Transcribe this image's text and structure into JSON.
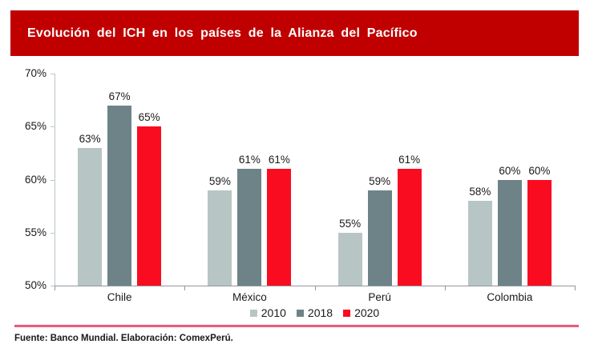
{
  "header": {
    "title": "Evolución del ICH en los países de la Alianza del Pacífico"
  },
  "chart_data": {
    "type": "bar",
    "title": "Evolución del ICH en los países de la Alianza del Pacífico",
    "categories": [
      "Chile",
      "México",
      "Perú",
      "Colombia"
    ],
    "series": [
      {
        "name": "2010",
        "color": "#B7C6C4",
        "values": [
          63,
          59,
          55,
          58
        ]
      },
      {
        "name": "2018",
        "color": "#6E8387",
        "values": [
          67,
          61,
          59,
          60
        ]
      },
      {
        "name": "2020",
        "color": "#FA0C20",
        "values": [
          65,
          61,
          61,
          60
        ]
      }
    ],
    "xlabel": "",
    "ylabel": "",
    "ylim": [
      50,
      70
    ],
    "yticks": [
      50,
      55,
      60,
      65,
      70
    ],
    "tick_suffix": "%",
    "grid": false,
    "legend_position": "bottom",
    "bar_value_labels": true,
    "value_label_suffix": "%"
  },
  "footer": {
    "source": "Fuente: Banco Mundial. Elaboración: ComexPerú."
  },
  "colors": {
    "header_bg": "#C00000",
    "header_text": "#FFFFFF",
    "axis_line": "#B9C6CA",
    "baseline": "#8E989C",
    "divider": "#D62E57",
    "label_text": "#1A1A1A"
  }
}
